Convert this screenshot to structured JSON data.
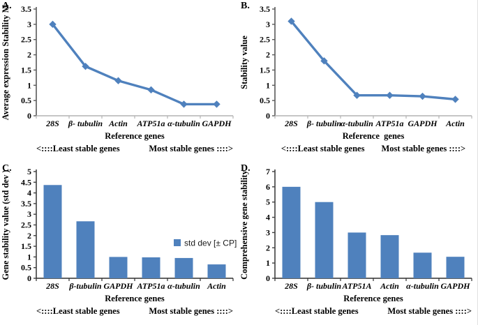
{
  "accent": "#4F81BD",
  "axis_colors": {
    "line_y": "#595959",
    "line_x": "#b3b3b3",
    "bar_y": "#3f3f3f",
    "bar_x": "#2f2f2f"
  },
  "chart_data": [
    {
      "panel": "A.",
      "type": "line",
      "categories": [
        "28S",
        "β- tubulin",
        "Actin",
        "ATP51a",
        "α-tubulin",
        "GAPDH"
      ],
      "values": [
        3.0,
        1.62,
        1.15,
        0.85,
        0.38,
        0.38
      ],
      "xlabel": "Reference genes",
      "ylabel": "Average expression Stability M",
      "ylim": [
        0,
        3.5
      ],
      "ytick_step": 0.5,
      "legend": null,
      "footer_left": "<::::Least stable genes",
      "footer_right": "Most stable genes ::::>"
    },
    {
      "panel": "B.",
      "type": "line",
      "categories": [
        "28S",
        "β- tubulin",
        "α-tubulin",
        "ATP51a",
        "GAPDH",
        "Actin"
      ],
      "values": [
        3.1,
        1.8,
        0.67,
        0.67,
        0.64,
        0.54
      ],
      "xlabel": "Reference  genes",
      "ylabel": "Stability value",
      "ylim": [
        0,
        3.5
      ],
      "ytick_step": 0.5,
      "legend": null,
      "footer_left": "<::::Least stable genes",
      "footer_right": "Most stable genes ::::>"
    },
    {
      "panel": "C.",
      "type": "bar",
      "categories": [
        "28S",
        "β-tubulin",
        "GAPDH",
        "ATP51a",
        "α-tubulin",
        "Actin"
      ],
      "values": [
        4.37,
        2.67,
        1.0,
        0.98,
        0.95,
        0.65
      ],
      "xlabel": "Reference genes",
      "ylabel": "Gene stability value (std dev )",
      "ylim": [
        0,
        5
      ],
      "ytick_step": 0.5,
      "legend": "std dev [± CP]",
      "footer_left": "<::::Least stable genes",
      "footer_right": "Most stable genes ::::>"
    },
    {
      "panel": "D.",
      "type": "bar",
      "categories": [
        "28S",
        "β- tubulin",
        "ATP51A",
        "Actin",
        "α-tubulin",
        "GAPDH"
      ],
      "values": [
        6.0,
        5.0,
        3.0,
        2.83,
        1.68,
        1.41
      ],
      "xlabel": "Reference genes",
      "ylabel": "Comprehensive gene stability",
      "ylim": [
        0,
        7
      ],
      "ytick_step": 1,
      "legend": null,
      "footer_left": "<::::Least stable genes",
      "footer_right": "Most stable genes ::::>"
    }
  ]
}
